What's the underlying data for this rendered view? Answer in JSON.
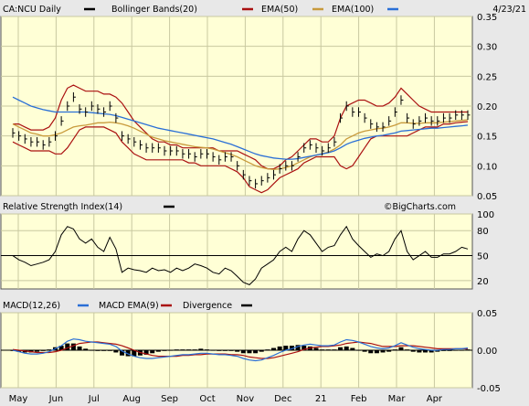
{
  "chart_data": {
    "type": "line",
    "date": "4/23/21",
    "watermark": "©BigCharts.com",
    "months": [
      "May",
      "Jun",
      "Jul",
      "Aug",
      "Sep",
      "Oct",
      "Nov",
      "Dec",
      "21",
      "Feb",
      "Mar",
      "Apr"
    ],
    "colors": {
      "price": "#000000",
      "bollinger": "#aa1111",
      "ema50": "#c89a3c",
      "ema100": "#2a6fd6",
      "macd": "#2a6fd6",
      "macd_ema": "#aa1111",
      "divergence": "#000000"
    },
    "panels": [
      {
        "name": "price",
        "title": "CA:NCU Daily",
        "legend": [
          {
            "label": "Bollinger Bands(20)",
            "color": "#aa1111"
          },
          {
            "label": "EMA(50)",
            "color": "#c89a3c"
          },
          {
            "label": "EMA(100)",
            "color": "#2a6fd6"
          }
        ],
        "ylim": [
          0.05,
          0.35
        ],
        "yticks": [
          "0.35",
          "0.30",
          "0.25",
          "0.20",
          "0.15",
          "0.10",
          "0.05"
        ],
        "close": [
          0.155,
          0.15,
          0.145,
          0.14,
          0.14,
          0.135,
          0.14,
          0.15,
          0.175,
          0.2,
          0.215,
          0.195,
          0.19,
          0.2,
          0.195,
          0.19,
          0.2,
          0.18,
          0.15,
          0.145,
          0.14,
          0.135,
          0.13,
          0.13,
          0.13,
          0.125,
          0.125,
          0.125,
          0.12,
          0.12,
          0.115,
          0.12,
          0.12,
          0.115,
          0.11,
          0.115,
          0.115,
          0.1,
          0.085,
          0.075,
          0.07,
          0.075,
          0.08,
          0.085,
          0.095,
          0.1,
          0.1,
          0.115,
          0.13,
          0.135,
          0.13,
          0.125,
          0.13,
          0.14,
          0.18,
          0.2,
          0.19,
          0.19,
          0.18,
          0.17,
          0.165,
          0.165,
          0.175,
          0.19,
          0.21,
          0.18,
          0.17,
          0.175,
          0.18,
          0.175,
          0.175,
          0.18,
          0.18,
          0.185,
          0.185,
          0.185
        ],
        "ema50": [
          0.17,
          0.165,
          0.16,
          0.155,
          0.153,
          0.15,
          0.15,
          0.152,
          0.155,
          0.16,
          0.165,
          0.167,
          0.168,
          0.17,
          0.172,
          0.172,
          0.173,
          0.172,
          0.17,
          0.167,
          0.163,
          0.158,
          0.153,
          0.148,
          0.145,
          0.142,
          0.14,
          0.138,
          0.136,
          0.134,
          0.132,
          0.131,
          0.13,
          0.128,
          0.125,
          0.122,
          0.119,
          0.115,
          0.11,
          0.105,
          0.1,
          0.097,
          0.095,
          0.094,
          0.095,
          0.097,
          0.1,
          0.105,
          0.11,
          0.115,
          0.118,
          0.12,
          0.123,
          0.128,
          0.135,
          0.145,
          0.15,
          0.155,
          0.158,
          0.16,
          0.162,
          0.163,
          0.165,
          0.168,
          0.172,
          0.172,
          0.171,
          0.171,
          0.172,
          0.172,
          0.172,
          0.173,
          0.174,
          0.175,
          0.176,
          0.177
        ],
        "ema100": [
          0.215,
          0.21,
          0.205,
          0.2,
          0.197,
          0.194,
          0.192,
          0.19,
          0.19,
          0.19,
          0.19,
          0.19,
          0.19,
          0.189,
          0.188,
          0.187,
          0.186,
          0.184,
          0.181,
          0.178,
          0.175,
          0.172,
          0.169,
          0.166,
          0.163,
          0.161,
          0.159,
          0.157,
          0.155,
          0.153,
          0.151,
          0.149,
          0.147,
          0.145,
          0.142,
          0.139,
          0.136,
          0.132,
          0.128,
          0.124,
          0.12,
          0.117,
          0.115,
          0.113,
          0.112,
          0.111,
          0.111,
          0.112,
          0.114,
          0.116,
          0.118,
          0.12,
          0.122,
          0.125,
          0.13,
          0.136,
          0.14,
          0.143,
          0.146,
          0.148,
          0.15,
          0.151,
          0.153,
          0.155,
          0.158,
          0.159,
          0.16,
          0.161,
          0.162,
          0.163,
          0.163,
          0.164,
          0.165,
          0.166,
          0.167,
          0.168
        ],
        "boll_upper": [
          0.17,
          0.17,
          0.165,
          0.16,
          0.16,
          0.16,
          0.165,
          0.18,
          0.21,
          0.23,
          0.235,
          0.23,
          0.225,
          0.225,
          0.225,
          0.22,
          0.22,
          0.215,
          0.205,
          0.19,
          0.175,
          0.165,
          0.155,
          0.145,
          0.14,
          0.14,
          0.135,
          0.135,
          0.13,
          0.13,
          0.13,
          0.13,
          0.13,
          0.13,
          0.125,
          0.125,
          0.125,
          0.125,
          0.12,
          0.115,
          0.11,
          0.1,
          0.095,
          0.095,
          0.1,
          0.11,
          0.115,
          0.125,
          0.135,
          0.145,
          0.145,
          0.14,
          0.14,
          0.15,
          0.18,
          0.2,
          0.205,
          0.21,
          0.21,
          0.205,
          0.2,
          0.2,
          0.205,
          0.215,
          0.23,
          0.22,
          0.21,
          0.2,
          0.195,
          0.19,
          0.19,
          0.19,
          0.19,
          0.19,
          0.19,
          0.19
        ],
        "boll_lower": [
          0.14,
          0.135,
          0.13,
          0.125,
          0.125,
          0.125,
          0.125,
          0.12,
          0.12,
          0.13,
          0.145,
          0.16,
          0.165,
          0.165,
          0.165,
          0.165,
          0.16,
          0.155,
          0.14,
          0.13,
          0.12,
          0.115,
          0.11,
          0.11,
          0.11,
          0.11,
          0.11,
          0.11,
          0.11,
          0.105,
          0.105,
          0.1,
          0.1,
          0.1,
          0.1,
          0.1,
          0.095,
          0.09,
          0.08,
          0.065,
          0.06,
          0.055,
          0.06,
          0.07,
          0.08,
          0.085,
          0.09,
          0.095,
          0.105,
          0.11,
          0.115,
          0.115,
          0.115,
          0.115,
          0.1,
          0.095,
          0.1,
          0.115,
          0.13,
          0.145,
          0.15,
          0.15,
          0.15,
          0.15,
          0.15,
          0.15,
          0.155,
          0.16,
          0.165,
          0.165,
          0.165,
          0.17,
          0.17,
          0.172,
          0.173,
          0.174
        ]
      },
      {
        "name": "rsi",
        "title": "Relative Strength Index(14)",
        "ylim": [
          10,
          100
        ],
        "yticks": [
          "100",
          "80",
          "50",
          "20"
        ],
        "reference": 50,
        "values": [
          50,
          45,
          42,
          38,
          40,
          42,
          45,
          55,
          75,
          85,
          82,
          70,
          65,
          70,
          60,
          55,
          72,
          58,
          30,
          35,
          33,
          32,
          30,
          35,
          32,
          33,
          30,
          35,
          32,
          35,
          40,
          38,
          35,
          30,
          28,
          35,
          32,
          25,
          18,
          15,
          22,
          35,
          40,
          45,
          55,
          60,
          55,
          70,
          80,
          75,
          65,
          55,
          60,
          62,
          75,
          85,
          70,
          62,
          55,
          48,
          52,
          50,
          55,
          70,
          80,
          55,
          45,
          50,
          55,
          48,
          48,
          52,
          52,
          55,
          60,
          58
        ]
      },
      {
        "name": "macd",
        "title": "MACD(12,26)",
        "legend": [
          {
            "label": "MACD EMA(9)",
            "color": "#aa1111"
          },
          {
            "label": "Divergence",
            "color": "#000000"
          }
        ],
        "ylim": [
          -0.05,
          0.05
        ],
        "yticks": [
          "0.05",
          "0.00",
          "-0.05"
        ],
        "macd": [
          0,
          -0.002,
          -0.004,
          -0.005,
          -0.005,
          -0.004,
          -0.002,
          0.002,
          0.006,
          0.012,
          0.015,
          0.014,
          0.012,
          0.011,
          0.01,
          0.009,
          0.008,
          0.005,
          -0.001,
          -0.005,
          -0.008,
          -0.01,
          -0.011,
          -0.011,
          -0.01,
          -0.009,
          -0.008,
          -0.007,
          -0.006,
          -0.006,
          -0.005,
          -0.004,
          -0.004,
          -0.005,
          -0.006,
          -0.006,
          -0.007,
          -0.008,
          -0.011,
          -0.013,
          -0.014,
          -0.013,
          -0.01,
          -0.007,
          -0.003,
          0,
          0.002,
          0.005,
          0.007,
          0.008,
          0.007,
          0.006,
          0.006,
          0.007,
          0.011,
          0.014,
          0.013,
          0.011,
          0.008,
          0.005,
          0.003,
          0.002,
          0.003,
          0.006,
          0.01,
          0.007,
          0.004,
          0.002,
          0.001,
          0,
          0,
          0.001,
          0.001,
          0.002,
          0.002,
          0.003
        ],
        "signal": [
          0.001,
          0,
          -0.001,
          -0.002,
          -0.003,
          -0.003,
          -0.003,
          -0.002,
          0,
          0.003,
          0.006,
          0.009,
          0.01,
          0.011,
          0.011,
          0.01,
          0.009,
          0.008,
          0.006,
          0.003,
          0,
          -0.003,
          -0.005,
          -0.007,
          -0.008,
          -0.008,
          -0.008,
          -0.008,
          -0.007,
          -0.007,
          -0.006,
          -0.006,
          -0.005,
          -0.005,
          -0.005,
          -0.005,
          -0.006,
          -0.006,
          -0.007,
          -0.009,
          -0.01,
          -0.011,
          -0.011,
          -0.01,
          -0.008,
          -0.006,
          -0.004,
          -0.002,
          0.001,
          0.003,
          0.004,
          0.005,
          0.005,
          0.006,
          0.007,
          0.009,
          0.01,
          0.011,
          0.01,
          0.009,
          0.007,
          0.005,
          0.005,
          0.005,
          0.006,
          0.006,
          0.006,
          0.005,
          0.004,
          0.003,
          0.002,
          0.002,
          0.002,
          0.002,
          0.002,
          0.002
        ]
      }
    ]
  }
}
